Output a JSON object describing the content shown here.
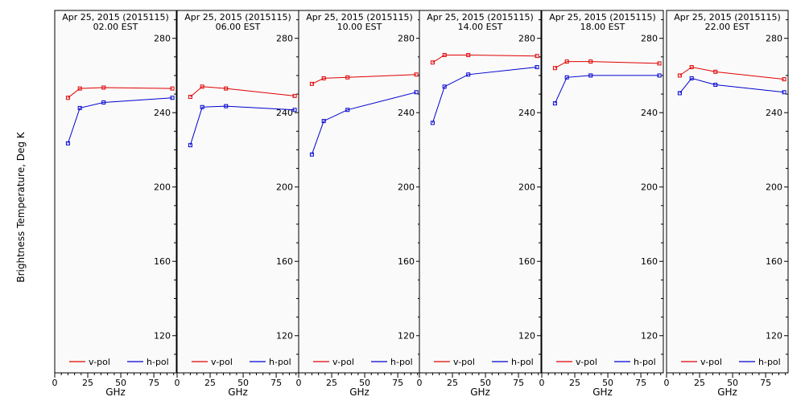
{
  "figure": {
    "ylabel": "Brightness Temperature, Deg K",
    "xlabel": "GHz",
    "background": "#ffffff",
    "panel_background": "#fafafa"
  },
  "chart_data": [
    {
      "type": "line",
      "title": "Apr 25, 2015 (2015115)",
      "subtitle": "02.00 EST",
      "xlabel": "GHz",
      "ylabel": "Brightness Temperature, Deg K",
      "xlim": [
        0,
        92
      ],
      "ylim": [
        100,
        295
      ],
      "xticks": [
        0,
        25,
        50,
        75
      ],
      "yticks": [
        120,
        160,
        200,
        240,
        280
      ],
      "legend": "bottom",
      "series": [
        {
          "name": "v-pol",
          "color": "#e00000",
          "x": [
            10,
            19,
            37,
            89
          ],
          "y": [
            248,
            253,
            253.5,
            253
          ]
        },
        {
          "name": "h-pol",
          "color": "#0000d0",
          "x": [
            10,
            19,
            37,
            89
          ],
          "y": [
            223.5,
            242.5,
            245.5,
            248
          ]
        }
      ]
    },
    {
      "type": "line",
      "title": "Apr 25, 2015 (2015115)",
      "subtitle": "06.00 EST",
      "xlabel": "GHz",
      "xlim": [
        0,
        92
      ],
      "ylim": [
        100,
        295
      ],
      "xticks": [
        0,
        25,
        50,
        75
      ],
      "yticks": [
        120,
        160,
        200,
        240,
        280
      ],
      "legend": "bottom",
      "series": [
        {
          "name": "v-pol",
          "color": "#e00000",
          "x": [
            10,
            19,
            37,
            89
          ],
          "y": [
            248.5,
            254,
            253,
            249
          ]
        },
        {
          "name": "h-pol",
          "color": "#0000d0",
          "x": [
            10,
            19,
            37,
            89
          ],
          "y": [
            222.5,
            243,
            243.5,
            241.5
          ]
        }
      ]
    },
    {
      "type": "line",
      "title": "Apr 25, 2015 (2015115)",
      "subtitle": "10.00 EST",
      "xlabel": "GHz",
      "xlim": [
        0,
        92
      ],
      "ylim": [
        100,
        295
      ],
      "xticks": [
        0,
        25,
        50,
        75
      ],
      "yticks": [
        120,
        160,
        200,
        240,
        280
      ],
      "legend": "bottom",
      "series": [
        {
          "name": "v-pol",
          "color": "#e00000",
          "x": [
            10,
            19,
            37,
            89
          ],
          "y": [
            255.5,
            258.5,
            259,
            260.5
          ]
        },
        {
          "name": "h-pol",
          "color": "#0000d0",
          "x": [
            10,
            19,
            37,
            89
          ],
          "y": [
            217.5,
            235.5,
            241.5,
            251
          ]
        }
      ]
    },
    {
      "type": "line",
      "title": "Apr 25, 2015 (2015115)",
      "subtitle": "14.00 EST",
      "xlabel": "GHz",
      "xlim": [
        0,
        92
      ],
      "ylim": [
        100,
        295
      ],
      "xticks": [
        0,
        25,
        50,
        75
      ],
      "yticks": [
        120,
        160,
        200,
        240,
        280
      ],
      "legend": "bottom",
      "series": [
        {
          "name": "v-pol",
          "color": "#e00000",
          "x": [
            10,
            19,
            37,
            89
          ],
          "y": [
            267,
            271,
            271,
            270.5
          ]
        },
        {
          "name": "h-pol",
          "color": "#0000d0",
          "x": [
            10,
            19,
            37,
            89
          ],
          "y": [
            234.5,
            254,
            260.5,
            264.5
          ]
        }
      ]
    },
    {
      "type": "line",
      "title": "Apr 25, 2015 (2015115)",
      "subtitle": "18.00 EST",
      "xlabel": "GHz",
      "xlim": [
        0,
        92
      ],
      "ylim": [
        100,
        295
      ],
      "xticks": [
        0,
        25,
        50,
        75
      ],
      "yticks": [
        120,
        160,
        200,
        240,
        280
      ],
      "legend": "bottom",
      "series": [
        {
          "name": "v-pol",
          "color": "#e00000",
          "x": [
            10,
            19,
            37,
            89
          ],
          "y": [
            264,
            267.5,
            267.5,
            266.5
          ]
        },
        {
          "name": "h-pol",
          "color": "#0000d0",
          "x": [
            10,
            19,
            37,
            89
          ],
          "y": [
            245,
            259,
            260,
            260
          ]
        }
      ]
    },
    {
      "type": "line",
      "title": "Apr 25, 2015 (2015115)",
      "subtitle": "22.00 EST",
      "xlabel": "GHz",
      "xlim": [
        0,
        92
      ],
      "ylim": [
        100,
        295
      ],
      "xticks": [
        0,
        25,
        50,
        75
      ],
      "yticks": [
        120,
        160,
        200,
        240,
        280
      ],
      "legend": "bottom",
      "series": [
        {
          "name": "v-pol",
          "color": "#e00000",
          "x": [
            10,
            19,
            37,
            89
          ],
          "y": [
            260,
            264.5,
            262,
            258
          ]
        },
        {
          "name": "h-pol",
          "color": "#0000d0",
          "x": [
            10,
            19,
            37,
            89
          ],
          "y": [
            250.5,
            258.5,
            255,
            251
          ]
        }
      ]
    }
  ]
}
